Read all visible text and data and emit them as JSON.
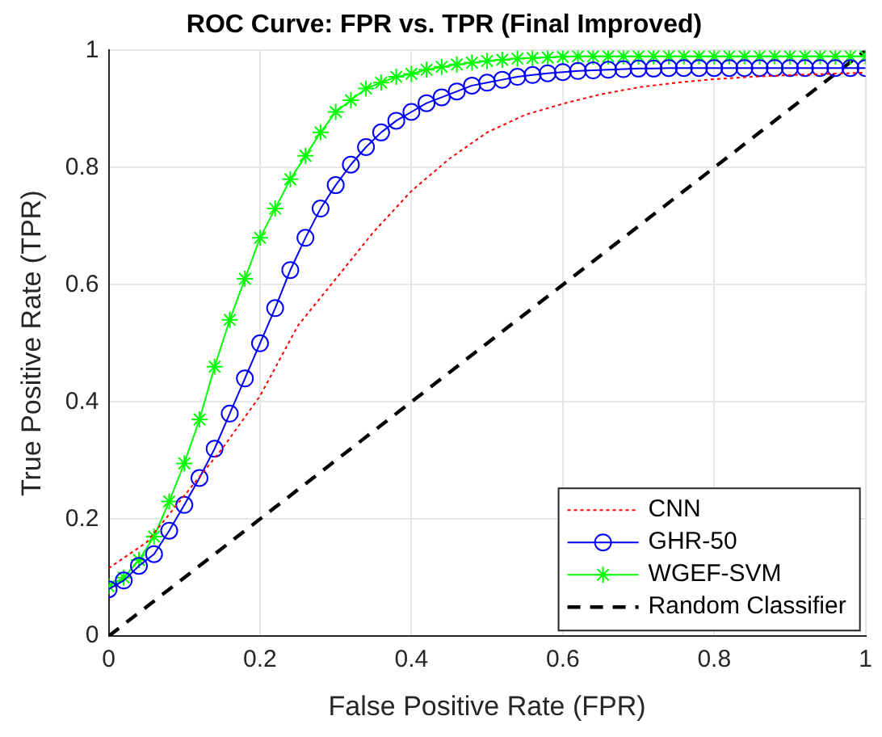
{
  "chart_data": {
    "type": "line",
    "title": "ROC Curve: FPR vs. TPR (Final Improved)",
    "xlabel": "False Positive Rate (FPR)",
    "ylabel": "True Positive Rate (TPR)",
    "xlim": [
      0,
      1
    ],
    "ylim": [
      0,
      1
    ],
    "xticks": [
      0,
      0.2,
      0.4,
      0.6,
      0.8,
      1
    ],
    "yticks": [
      0,
      0.2,
      0.4,
      0.6,
      0.8,
      1
    ],
    "grid": true,
    "legend": "bottom right",
    "series": [
      {
        "name": "CNN",
        "color": "#ff0000",
        "marker": "none",
        "line_style": "dotted",
        "x": [
          0,
          0.05,
          0.1,
          0.15,
          0.2,
          0.25,
          0.3,
          0.35,
          0.4,
          0.45,
          0.5,
          0.55,
          0.6,
          0.65,
          0.7,
          0.75,
          0.8,
          0.85,
          0.9,
          0.95,
          1
        ],
        "values": [
          0.116,
          0.16,
          0.24,
          0.32,
          0.41,
          0.53,
          0.61,
          0.69,
          0.76,
          0.815,
          0.86,
          0.89,
          0.909,
          0.925,
          0.937,
          0.945,
          0.951,
          0.955,
          0.958,
          0.96,
          0.962
        ]
      },
      {
        "name": "GHR-50",
        "color": "#0000ff",
        "marker": "circle",
        "line_style": "solid",
        "x": [
          0,
          0.02,
          0.04,
          0.06,
          0.08,
          0.1,
          0.12,
          0.14,
          0.16,
          0.18,
          0.2,
          0.22,
          0.24,
          0.26,
          0.28,
          0.3,
          0.32,
          0.34,
          0.36,
          0.38,
          0.4,
          0.42,
          0.44,
          0.46,
          0.48,
          0.5,
          0.52,
          0.54,
          0.56,
          0.58,
          0.6,
          0.62,
          0.64,
          0.66,
          0.68,
          0.7,
          0.72,
          0.74,
          0.76,
          0.78,
          0.8,
          0.82,
          0.84,
          0.86,
          0.88,
          0.9,
          0.92,
          0.94,
          0.96,
          0.98,
          1
        ],
        "values": [
          0.08,
          0.095,
          0.12,
          0.14,
          0.18,
          0.224,
          0.27,
          0.32,
          0.38,
          0.44,
          0.5,
          0.56,
          0.625,
          0.68,
          0.73,
          0.77,
          0.805,
          0.835,
          0.86,
          0.88,
          0.895,
          0.91,
          0.92,
          0.93,
          0.94,
          0.945,
          0.95,
          0.955,
          0.958,
          0.961,
          0.963,
          0.965,
          0.966,
          0.967,
          0.968,
          0.969,
          0.969,
          0.97,
          0.97,
          0.97,
          0.97,
          0.97,
          0.97,
          0.97,
          0.97,
          0.97,
          0.97,
          0.97,
          0.97,
          0.97,
          0.97
        ]
      },
      {
        "name": "WGEF-SVM",
        "color": "#00ff00",
        "marker": "cross",
        "line_style": "solid",
        "x": [
          0,
          0.02,
          0.04,
          0.06,
          0.08,
          0.1,
          0.12,
          0.14,
          0.16,
          0.18,
          0.2,
          0.22,
          0.24,
          0.26,
          0.28,
          0.3,
          0.32,
          0.34,
          0.36,
          0.38,
          0.4,
          0.42,
          0.44,
          0.46,
          0.48,
          0.5,
          0.52,
          0.54,
          0.56,
          0.58,
          0.6,
          0.62,
          0.64,
          0.66,
          0.68,
          0.7,
          0.72,
          0.74,
          0.76,
          0.78,
          0.8,
          0.82,
          0.84,
          0.86,
          0.88,
          0.9,
          0.92,
          0.94,
          0.96,
          0.98,
          1
        ],
        "values": [
          0.085,
          0.1,
          0.13,
          0.17,
          0.23,
          0.295,
          0.37,
          0.46,
          0.54,
          0.61,
          0.68,
          0.73,
          0.78,
          0.82,
          0.86,
          0.895,
          0.915,
          0.935,
          0.945,
          0.955,
          0.96,
          0.967,
          0.972,
          0.976,
          0.979,
          0.982,
          0.984,
          0.986,
          0.987,
          0.988,
          0.989,
          0.99,
          0.99,
          0.99,
          0.99,
          0.99,
          0.99,
          0.99,
          0.99,
          0.99,
          0.99,
          0.99,
          0.99,
          0.99,
          0.99,
          0.99,
          0.99,
          0.99,
          0.99,
          0.99,
          0.99
        ]
      },
      {
        "name": "Random Classifier",
        "color": "#000000",
        "marker": "none",
        "line_style": "dashed",
        "x": [
          0,
          1
        ],
        "values": [
          0,
          1
        ]
      }
    ]
  }
}
